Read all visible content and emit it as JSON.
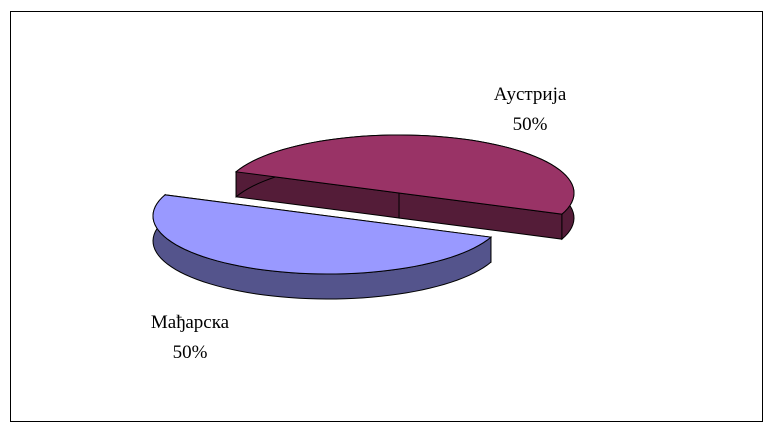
{
  "chart_data": {
    "type": "pie",
    "categories": [
      "Аустрија",
      "Мађарска"
    ],
    "values": [
      50,
      50
    ],
    "value_labels": [
      "50%",
      "50%"
    ],
    "colors": [
      "#993366",
      "#9999ff"
    ]
  }
}
